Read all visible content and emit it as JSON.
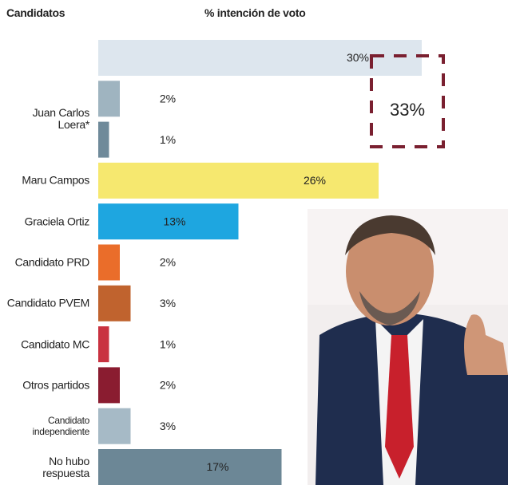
{
  "chart_data": {
    "type": "hbar",
    "title": "% intención de voto",
    "category_header": "Candidatos",
    "categories": [
      null,
      "Juan Carlos Loera*",
      null,
      "Maru Campos",
      "Graciela Ortiz",
      "Candidato PRD",
      "Candidato PVEM",
      "Candidato MC",
      "Otros partidos",
      "Candidato independiente",
      "No hubo respuesta"
    ],
    "values": [
      30,
      2,
      1,
      26,
      13,
      2,
      3,
      1,
      2,
      3,
      17
    ],
    "value_labels": [
      "30%",
      "2%",
      "1%",
      "26%",
      "13%",
      "2%",
      "3%",
      "1%",
      "2%",
      "3%",
      "17%"
    ],
    "colors": [
      "#dde6ee",
      "#9fb4c0",
      "#6f8a9a",
      "#f6e86f",
      "#1ea6e0",
      "#ea6d2a",
      "#c0632e",
      "#c93240",
      "#8a1c30",
      "#a6bac6",
      "#6c8796"
    ],
    "xlim": [
      0,
      30
    ],
    "annotation": "33%",
    "annotation_color": "#7a2030"
  }
}
